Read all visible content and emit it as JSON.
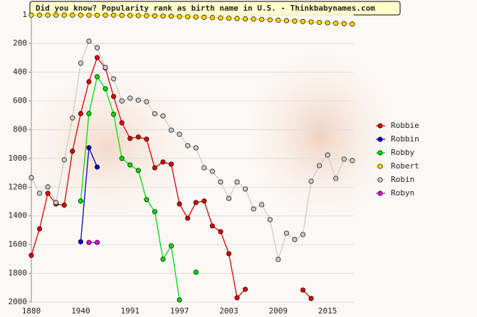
{
  "chart_data": {
    "type": "line",
    "title": "Did you know? Popularity rank as birth name in U.S. - Thinkbabynames.com",
    "categories": [
      "1880",
      null,
      null,
      null,
      null,
      null,
      "1940",
      null,
      null,
      null,
      null,
      null,
      "1991",
      null,
      null,
      null,
      null,
      null,
      "1997",
      null,
      null,
      null,
      null,
      null,
      "2003",
      null,
      null,
      null,
      null,
      null,
      "2009",
      null,
      null,
      null,
      null,
      null,
      "2015",
      null,
      null,
      null
    ],
    "ylim": [
      1,
      2000
    ],
    "yticks": [
      1,
      200,
      400,
      600,
      800,
      1000,
      1200,
      1400,
      1600,
      1800,
      2000
    ],
    "inverted_y": true,
    "grid": true,
    "legend": "right",
    "series": [
      {
        "name": "Robbie",
        "color": "#dd0000",
        "values": [
          1675,
          1490,
          1243,
          1317,
          1325,
          950,
          688,
          466,
          298,
          371,
          569,
          752,
          861,
          851,
          866,
          1065,
          1025,
          1040,
          1317,
          1416,
          1307,
          1297,
          1470,
          1510,
          1663,
          1970,
          1911,
          null,
          null,
          null,
          null,
          null,
          null,
          1916,
          1975,
          null,
          null,
          null,
          null,
          null
        ]
      },
      {
        "name": "Robbin",
        "color": "#0000cc",
        "values": [
          null,
          null,
          null,
          null,
          null,
          null,
          1580,
          925,
          1060,
          null,
          null,
          null,
          null,
          null,
          null,
          null,
          null,
          null,
          null,
          null,
          null,
          null,
          null,
          null,
          null,
          null,
          null,
          null,
          null,
          null,
          null,
          null,
          null,
          null,
          null,
          null,
          null,
          null,
          null,
          null
        ]
      },
      {
        "name": "Robby",
        "color": "#00dd00",
        "values": [
          null,
          null,
          null,
          null,
          null,
          null,
          1297,
          688,
          431,
          515,
          693,
          1000,
          1045,
          1084,
          1287,
          1371,
          1702,
          1609,
          1985,
          null,
          1792,
          null,
          null,
          null,
          null,
          null,
          null,
          null,
          null,
          null,
          null,
          null,
          null,
          null,
          null,
          null,
          null,
          null,
          null,
          null
        ]
      },
      {
        "name": "Robert",
        "color": "#ffd700",
        "values": [
          2,
          2,
          2,
          2,
          2,
          2,
          2,
          3,
          3,
          3,
          3,
          4,
          5,
          6,
          7,
          8,
          9,
          10,
          12,
          14,
          16,
          18,
          20,
          22,
          24,
          26,
          28,
          30,
          32,
          35,
          38,
          41,
          44,
          47,
          50,
          53,
          56,
          59,
          62,
          65
        ]
      },
      {
        "name": "Robin",
        "color": "#cccccc",
        "values": [
          1134,
          1243,
          1198,
          1307,
          1010,
          718,
          337,
          184,
          229,
          367,
          446,
          600,
          580,
          595,
          605,
          689,
          704,
          803,
          832,
          911,
          926,
          1065,
          1090,
          1164,
          1278,
          1164,
          1213,
          1352,
          1322,
          1426,
          1703,
          1520,
          1565,
          1530,
          1159,
          1050,
          976,
          1139,
          1005,
          1015
        ]
      },
      {
        "name": "Robyn",
        "color": "#dd00dd",
        "values": [
          null,
          null,
          null,
          null,
          null,
          null,
          null,
          1585,
          1585,
          null,
          null,
          null,
          null,
          null,
          null,
          null,
          null,
          null,
          null,
          null,
          null,
          null,
          null,
          null,
          null,
          null,
          null,
          null,
          null,
          null,
          null,
          null,
          null,
          null,
          null,
          null,
          null,
          null,
          null,
          null
        ]
      }
    ]
  }
}
